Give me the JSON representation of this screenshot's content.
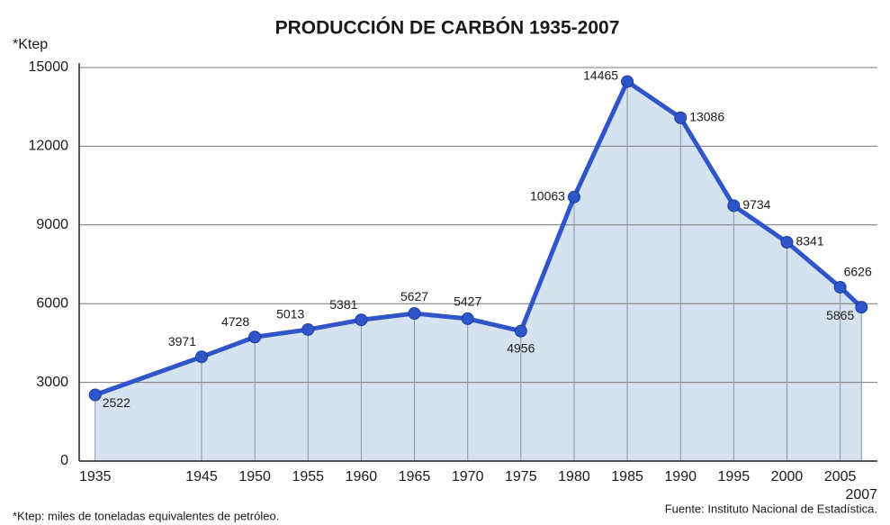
{
  "chart_data": {
    "type": "line",
    "title": "PRODUCCIÓN DE CARBÓN 1935-2007",
    "y_label": "*Ktep",
    "footnote": "*Ktep: miles de toneladas equivalentes de petróleo.",
    "source": "Fuente: Instituto Nacional de Estadística.",
    "x": [
      1935,
      1945,
      1950,
      1955,
      1960,
      1965,
      1970,
      1975,
      1980,
      1985,
      1990,
      1995,
      2000,
      2005,
      2007
    ],
    "series": [
      {
        "name": "Producción de carbón",
        "color": "#2f55c8",
        "fill": "#d5e3f1",
        "values": [
          2522,
          3971,
          4728,
          5013,
          5381,
          5627,
          5427,
          4956,
          10063,
          14465,
          13086,
          9734,
          8341,
          6626,
          5865
        ]
      }
    ],
    "xlim": [
      1933.5,
      2008.5
    ],
    "xticks": [
      1935,
      1945,
      1950,
      1955,
      1960,
      1965,
      1970,
      1975,
      1980,
      1985,
      1990,
      1995,
      2000,
      2005,
      2007
    ],
    "ylim": [
      0,
      15000
    ],
    "yticks": [
      0,
      3000,
      6000,
      9000,
      12000,
      15000
    ],
    "grid": true
  }
}
